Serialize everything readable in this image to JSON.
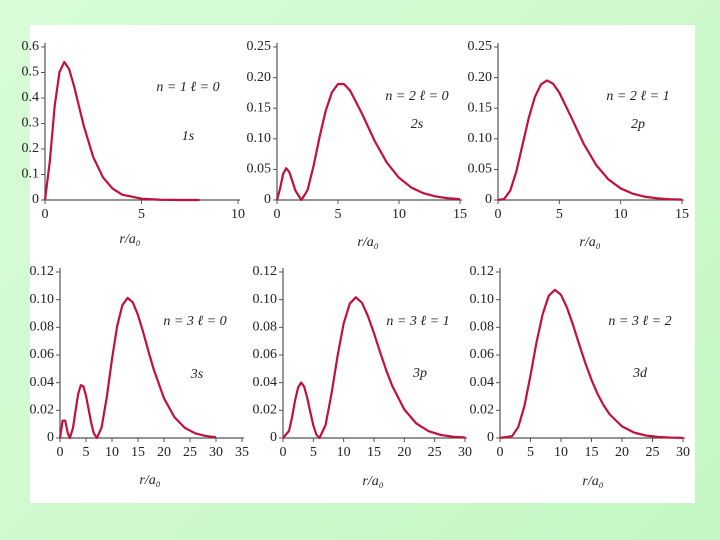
{
  "chart_data": [
    {
      "type": "line",
      "annotations": [
        "n = 1  ℓ = 0",
        "1s"
      ],
      "xlabel": "r/a₀",
      "color": "#c2103c",
      "x": [
        0,
        0.25,
        0.5,
        0.75,
        1,
        1.25,
        1.5,
        2,
        2.5,
        3,
        3.5,
        4,
        5,
        6,
        7,
        8
      ],
      "values": [
        0,
        0.152,
        0.368,
        0.502,
        0.541,
        0.513,
        0.448,
        0.293,
        0.168,
        0.089,
        0.045,
        0.021,
        0.005,
        0.001,
        0,
        0
      ],
      "xlim": [
        0,
        10
      ],
      "ylim": [
        0,
        0.6
      ],
      "xticks": [
        0,
        5,
        10
      ],
      "yticks": [
        0,
        0.1,
        0.2,
        0.3,
        0.4,
        0.5,
        0.6
      ]
    },
    {
      "type": "line",
      "annotations": [
        "n = 2  ℓ = 0",
        "2s"
      ],
      "xlabel": "r/a₀",
      "color": "#c2103c",
      "x": [
        0,
        0.25,
        0.5,
        0.75,
        1,
        1.25,
        1.5,
        2,
        2.5,
        3,
        3.5,
        4,
        4.5,
        5,
        5.5,
        6,
        7,
        8,
        9,
        10,
        11,
        12,
        13,
        14,
        15
      ],
      "values": [
        0,
        0.0186,
        0.0426,
        0.0519,
        0.046,
        0.0315,
        0.0157,
        0,
        0.016,
        0.056,
        0.104,
        0.1465,
        0.1758,
        0.1895,
        0.1893,
        0.1785,
        0.1397,
        0.0966,
        0.0612,
        0.0363,
        0.0205,
        0.0111,
        0.0058,
        0.0029,
        0.0015
      ],
      "xlim": [
        0,
        15
      ],
      "ylim": [
        0,
        0.25
      ],
      "xticks": [
        0,
        5,
        10,
        15
      ],
      "yticks": [
        0,
        0.05,
        {
          "value": 0.1,
          "label": "0.10"
        },
        0.15,
        {
          "value": 0.2,
          "label": "0.20"
        },
        0.25
      ]
    },
    {
      "type": "line",
      "annotations": [
        "n = 2  ℓ = 1",
        "2p"
      ],
      "xlabel": "r/a₀",
      "color": "#c2103c",
      "x": [
        0,
        0.5,
        1,
        1.5,
        2,
        2.5,
        3,
        3.5,
        4,
        4.5,
        5,
        6,
        7,
        8,
        9,
        10,
        11,
        12,
        13,
        14,
        15
      ],
      "values": [
        0,
        0.0016,
        0.0153,
        0.0471,
        0.0902,
        0.1336,
        0.168,
        0.1888,
        0.1954,
        0.1898,
        0.1755,
        0.1339,
        0.0912,
        0.0572,
        0.0337,
        0.0189,
        0.0102,
        0.0053,
        0.0027,
        0.0013,
        0.0006
      ],
      "xlim": [
        0,
        15
      ],
      "ylim": [
        0,
        0.25
      ],
      "xticks": [
        0,
        5,
        10,
        15
      ],
      "yticks": [
        0,
        0.05,
        {
          "value": 0.1,
          "label": "0.10"
        },
        0.15,
        {
          "value": 0.2,
          "label": "0.20"
        },
        0.25
      ]
    },
    {
      "type": "line",
      "annotations": [
        "n = 3  ℓ = 0",
        "3s"
      ],
      "xlabel": "r/a₀",
      "color": "#c2103c",
      "x": [
        0,
        0.5,
        1,
        1.5,
        1.9,
        2.5,
        3,
        3.5,
        4,
        4.5,
        5,
        5.5,
        6,
        6.5,
        7.1,
        8,
        9,
        10,
        11,
        12,
        13,
        14,
        15,
        16,
        17,
        18,
        20,
        22,
        24,
        26,
        28,
        30
      ],
      "values": [
        0,
        0.0125,
        0.0126,
        0.0034,
        0,
        0.0073,
        0.02,
        0.0319,
        0.0382,
        0.0373,
        0.0306,
        0.0208,
        0.0109,
        0.0034,
        0,
        0.0076,
        0.0297,
        0.0571,
        0.081,
        0.0961,
        0.1013,
        0.098,
        0.0889,
        0.0764,
        0.0628,
        0.0498,
        0.0287,
        0.0151,
        0.0073,
        0.0034,
        0.0015,
        0.0006
      ],
      "xlim": [
        0,
        35
      ],
      "ylim": [
        0,
        0.12
      ],
      "xticks": [
        0,
        5,
        10,
        15,
        20,
        25,
        30,
        35
      ],
      "yticks": [
        0,
        0.02,
        0.04,
        0.06,
        0.08,
        {
          "value": 0.1,
          "label": "0.10"
        },
        0.12
      ]
    },
    {
      "type": "line",
      "annotations": [
        "n = 3  ℓ = 1",
        "3p"
      ],
      "xlabel": "r/a₀",
      "color": "#c2103c",
      "x": [
        0,
        1,
        1.5,
        2,
        2.5,
        3,
        3.5,
        4,
        4.5,
        5,
        5.5,
        6,
        7,
        8,
        9,
        10,
        11,
        12,
        13,
        14,
        15,
        16,
        17,
        18,
        20,
        22,
        24,
        26,
        28,
        30
      ],
      "values": [
        0,
        0.0052,
        0.0153,
        0.0274,
        0.0367,
        0.0401,
        0.037,
        0.0289,
        0.0187,
        0.0091,
        0.0024,
        0,
        0.0091,
        0.0321,
        0.0595,
        0.0828,
        0.0971,
        0.1017,
        0.0978,
        0.0881,
        0.0757,
        0.0621,
        0.0491,
        0.0377,
        0.0206,
        0.0104,
        0.0049,
        0.0022,
        0.0009,
        0.0004
      ],
      "xlim": [
        0,
        30
      ],
      "ylim": [
        0,
        0.12
      ],
      "xticks": [
        0,
        5,
        10,
        15,
        20,
        25,
        30
      ],
      "yticks": [
        0,
        0.02,
        0.04,
        0.06,
        0.08,
        {
          "value": 0.1,
          "label": "0.10"
        },
        0.12
      ]
    },
    {
      "type": "line",
      "annotations": [
        "n = 3  ℓ = 2",
        "3d"
      ],
      "xlabel": "r/a₀",
      "color": "#c2103c",
      "x": [
        0,
        2,
        3,
        4,
        5,
        6,
        7,
        8,
        9,
        10,
        11,
        12,
        13,
        14,
        15,
        16,
        17,
        18,
        20,
        22,
        24,
        26,
        28,
        30
      ],
      "values": [
        0,
        0.0014,
        0.008,
        0.0231,
        0.0453,
        0.0695,
        0.0896,
        0.1029,
        0.1071,
        0.1035,
        0.094,
        0.0813,
        0.0674,
        0.054,
        0.042,
        0.0318,
        0.0235,
        0.017,
        0.0084,
        0.0039,
        0.0017,
        0.0007,
        0.0003,
        0.0001
      ],
      "xlim": [
        0,
        30
      ],
      "ylim": [
        0,
        0.12
      ],
      "xticks": [
        0,
        5,
        10,
        15,
        20,
        25,
        30
      ],
      "yticks": [
        0,
        0.02,
        0.04,
        0.06,
        0.08,
        {
          "value": 0.1,
          "label": "0.10"
        },
        0.12
      ]
    }
  ]
}
